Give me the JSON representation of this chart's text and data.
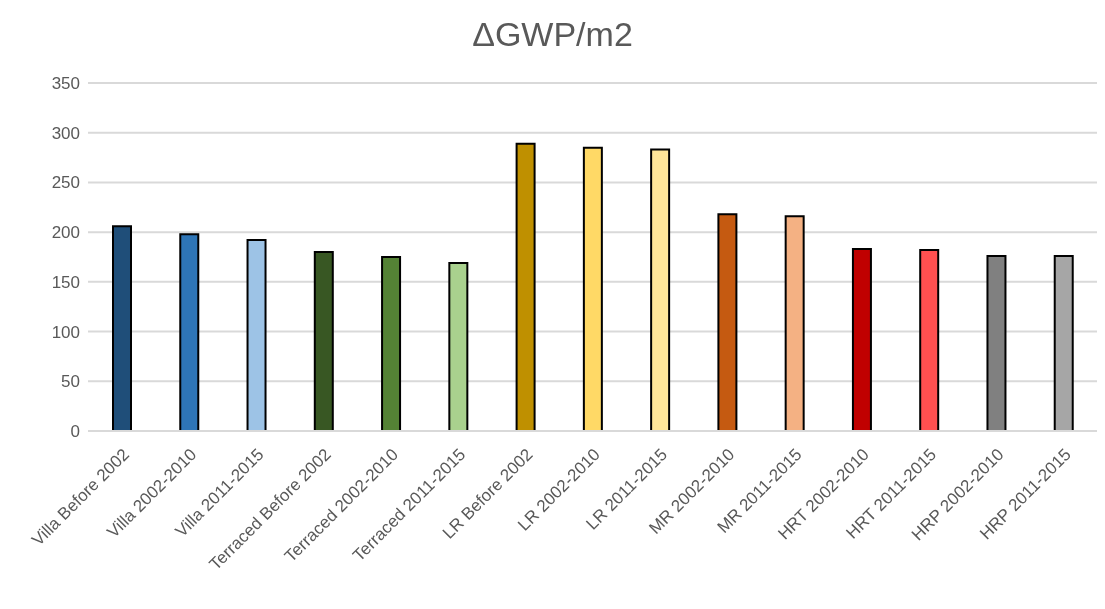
{
  "chart_data": {
    "type": "bar",
    "title": "ΔGWP/m2",
    "categories": [
      "Villa Before 2002",
      "Villa 2002-2010",
      "Villa 2011-2015",
      "Terraced Before 2002",
      "Terraced 2002-2010",
      "Terraced 2011-2015",
      "LR Before 2002",
      "LR 2002-2010",
      "LR 2011-2015",
      "MR 2002-2010",
      "MR 2011-2015",
      "HRT 2002-2010",
      "HRT 2011-2015",
      "HRP 2002-2010",
      "HRP 2011-2015"
    ],
    "values": [
      206,
      198,
      192,
      180,
      175,
      169,
      289,
      285,
      283,
      218,
      216,
      183,
      182,
      176,
      176
    ],
    "colors": [
      "#1f4e79",
      "#2e75b6",
      "#9dc3e6",
      "#385723",
      "#548235",
      "#a9d18e",
      "#bf9000",
      "#ffd966",
      "#ffe699",
      "#c55a11",
      "#f4b183",
      "#c00000",
      "#ff5050",
      "#808080",
      "#a6a6a6"
    ],
    "ylim": [
      0,
      350
    ],
    "yticks": [
      0,
      50,
      100,
      150,
      200,
      250,
      300,
      350
    ],
    "grid": "y"
  }
}
